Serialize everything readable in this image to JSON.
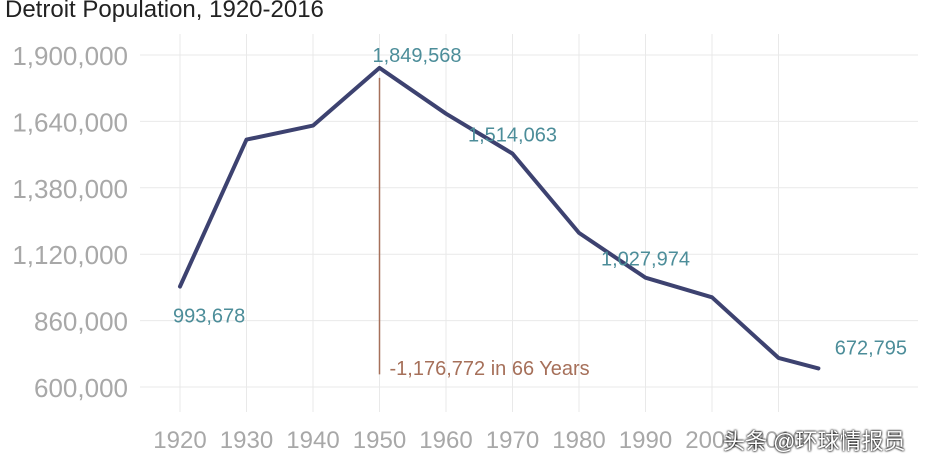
{
  "chart_data": {
    "type": "line",
    "title": "Detroit Population, 1920-2016",
    "x": [
      1920,
      1930,
      1940,
      1950,
      1960,
      1970,
      1980,
      1990,
      2000,
      2010,
      2016
    ],
    "x_tick_labels": [
      "1920",
      "1930",
      "1940",
      "1950",
      "1960",
      "1970",
      "1980",
      "1990",
      "2000",
      "2010"
    ],
    "series": [
      {
        "values": [
          993678,
          1568662,
          1623452,
          1849568,
          1670144,
          1514063,
          1203339,
          1027974,
          951270,
          713777,
          672795
        ]
      }
    ],
    "ylim": [
      600000,
      1900000
    ],
    "y_ticks": [
      600000,
      860000,
      1120000,
      1380000,
      1640000,
      1900000
    ],
    "y_tick_labels": [
      "600,000",
      "860,000",
      "1,120,000",
      "1,380,000",
      "1,640,000",
      "1,900,000"
    ],
    "data_labels": [
      {
        "x": 1920,
        "text": "993,678"
      },
      {
        "x": 1950,
        "text": "1,849,568"
      },
      {
        "x": 1970,
        "text": "1,514,063"
      },
      {
        "x": 1990,
        "text": "1,027,974"
      },
      {
        "x": 2016,
        "text": "672,795"
      }
    ],
    "annotation": {
      "x": 1950,
      "y_from": 1849568,
      "y_to": 672795,
      "text": "-1,176,772 in 66 Years"
    },
    "grid": true,
    "colors": {
      "line": "#3d4270",
      "data_label": "#4c8d99",
      "annotation": "#a6705a",
      "grid": "#e9e9e9",
      "tick_label": "#a8a8a8"
    }
  },
  "watermark": "头条 @环球情报员"
}
